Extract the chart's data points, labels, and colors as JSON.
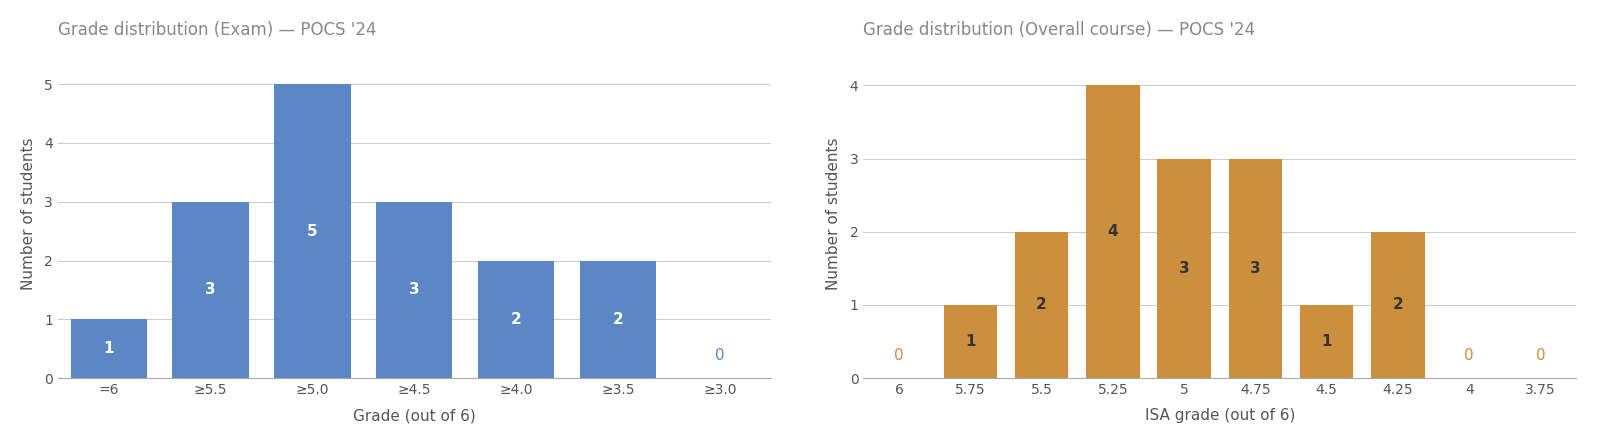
{
  "chart1": {
    "title": "Grade distribution (Exam) — POCS '24",
    "categories": [
      "=6",
      "≥5.5",
      "≥5.0",
      "≥4.5",
      "≥4.0",
      "≥3.5",
      "≥3.0"
    ],
    "values": [
      1,
      3,
      5,
      3,
      2,
      2,
      0
    ],
    "bar_color": "#5b87c5",
    "zero_label_color": "#5b87c5",
    "bar_label_color": "white",
    "xlabel": "Grade (out of 6)",
    "ylabel": "Number of students",
    "ylim": [
      0,
      5.6
    ],
    "yticks": [
      0,
      1,
      2,
      3,
      4,
      5
    ]
  },
  "chart2": {
    "title": "Grade distribution (Overall course) — POCS '24",
    "categories": [
      "6",
      "5.75",
      "5.5",
      "5.25",
      "5",
      "4.75",
      "4.5",
      "4.25",
      "4",
      "3.75"
    ],
    "values": [
      0,
      1,
      2,
      4,
      3,
      3,
      1,
      2,
      0,
      0
    ],
    "bar_color": "#cc8f3e",
    "zero_label_color": "#cc8f3e",
    "bar_label_color": "#333333",
    "xlabel": "ISA grade (out of 6)",
    "ylabel": "Number of students",
    "ylim": [
      0,
      4.5
    ],
    "yticks": [
      0,
      1,
      2,
      3,
      4
    ]
  },
  "title_color": "#888888",
  "tick_color": "#555555",
  "grid_color": "#cccccc",
  "background_color": "#ffffff",
  "title_fontsize": 12,
  "label_fontsize": 11,
  "tick_fontsize": 10,
  "annotation_fontsize": 11
}
